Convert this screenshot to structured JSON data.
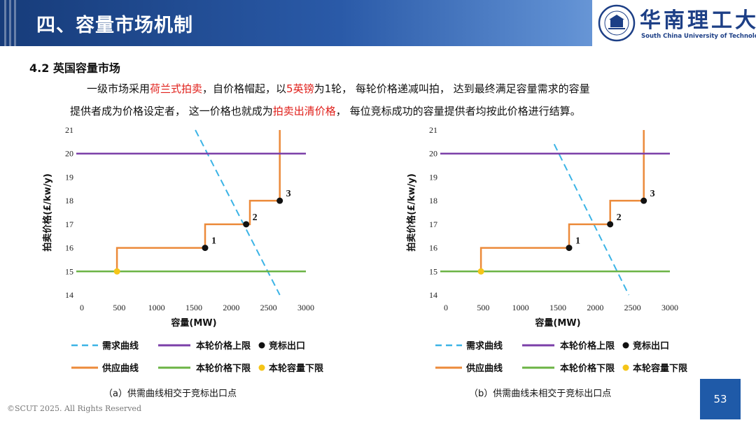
{
  "header": {
    "title": "四、容量市场机制",
    "university_cn": "华南理工大学",
    "university_en": "South China University of Technology"
  },
  "section": {
    "title": "4.2 英国容量市场"
  },
  "paragraph": {
    "l1_a": "一级市场采用",
    "l1_b": "荷兰式拍卖",
    "l1_c": "，自价格帽起，以",
    "l1_d": "5英镑",
    "l1_e": "为1轮， 每轮价格递减叫拍， 达到最终满足容量需求的容量",
    "l2_a": "提供者成为价格设定者， 这一价格也就成为",
    "l2_b": "拍卖出清价格",
    "l2_c": "， 每位竞标成功的容量提供者均按此价格进行结算。"
  },
  "colors": {
    "demand": "#3cb4e6",
    "cap": "#7b3fa8",
    "floor": "#6bb344",
    "supply": "#ec8a3a",
    "bid": "#111111",
    "volume": "#f5c518",
    "red": "#e0201b"
  },
  "legend": {
    "demand": "需求曲线",
    "cap": "本轮价格上限",
    "bid": "竞标出口",
    "supply": "供应曲线",
    "floor": "本轮价格下限",
    "volume": "本轮容量下限"
  },
  "chart_data": [
    {
      "type": "line",
      "caption": "（a）供需曲线相交于竞标出口点",
      "xlabel": "容量(MW)",
      "ylabel": "拍卖价格(£/kw/y)",
      "xlim": [
        0,
        3000
      ],
      "ylim": [
        14,
        21
      ],
      "xticks": [
        0,
        500,
        1000,
        1500,
        2000,
        2500,
        3000
      ],
      "yticks": [
        14,
        15,
        16,
        17,
        18,
        19,
        20,
        21
      ],
      "series": [
        {
          "key": "demand",
          "style": "dashed",
          "points": [
            [
              1520,
              21
            ],
            [
              2650,
              14
            ]
          ]
        },
        {
          "key": "supply",
          "style": "step",
          "points": [
            [
              470,
              15
            ],
            [
              470,
              16
            ],
            [
              1650,
              16
            ],
            [
              1650,
              17
            ],
            [
              2250,
              17
            ],
            [
              2250,
              18
            ],
            [
              2650,
              18
            ],
            [
              2650,
              21
            ]
          ]
        },
        {
          "key": "cap",
          "style": "hline",
          "y": 20
        },
        {
          "key": "floor",
          "style": "hline",
          "y": 15
        }
      ],
      "bid_points": [
        {
          "x": 1650,
          "y": 16,
          "label": "1"
        },
        {
          "x": 2200,
          "y": 17,
          "label": "2"
        },
        {
          "x": 2650,
          "y": 18,
          "label": "3"
        }
      ],
      "volume_point": {
        "x": 470,
        "y": 15
      }
    },
    {
      "type": "line",
      "caption": "（b）供需曲线未相交于竞标出口点",
      "xlabel": "容量(MW)",
      "ylabel": "拍卖价格(£/kw/y)",
      "xlim": [
        0,
        3000
      ],
      "ylim": [
        14,
        21
      ],
      "xticks": [
        0,
        500,
        1000,
        1500,
        2000,
        2500,
        3000
      ],
      "yticks": [
        14,
        15,
        16,
        17,
        18,
        19,
        20,
        21
      ],
      "series": [
        {
          "key": "demand",
          "style": "dashed",
          "points": [
            [
              1450,
              20.4
            ],
            [
              2450,
              14
            ]
          ]
        },
        {
          "key": "supply",
          "style": "step",
          "points": [
            [
              470,
              15
            ],
            [
              470,
              16
            ],
            [
              1650,
              16
            ],
            [
              1650,
              17
            ],
            [
              2200,
              17
            ],
            [
              2200,
              18
            ],
            [
              2650,
              18
            ],
            [
              2650,
              21
            ]
          ]
        },
        {
          "key": "cap",
          "style": "hline",
          "y": 20
        },
        {
          "key": "floor",
          "style": "hline",
          "y": 15
        }
      ],
      "bid_points": [
        {
          "x": 1650,
          "y": 16,
          "label": "1"
        },
        {
          "x": 2200,
          "y": 17,
          "label": "2"
        },
        {
          "x": 2650,
          "y": 18,
          "label": "3"
        }
      ],
      "volume_point": {
        "x": 470,
        "y": 15
      }
    }
  ],
  "footer": {
    "copyright": "©SCUT 2025. All Rights Reserved",
    "page": "53"
  }
}
